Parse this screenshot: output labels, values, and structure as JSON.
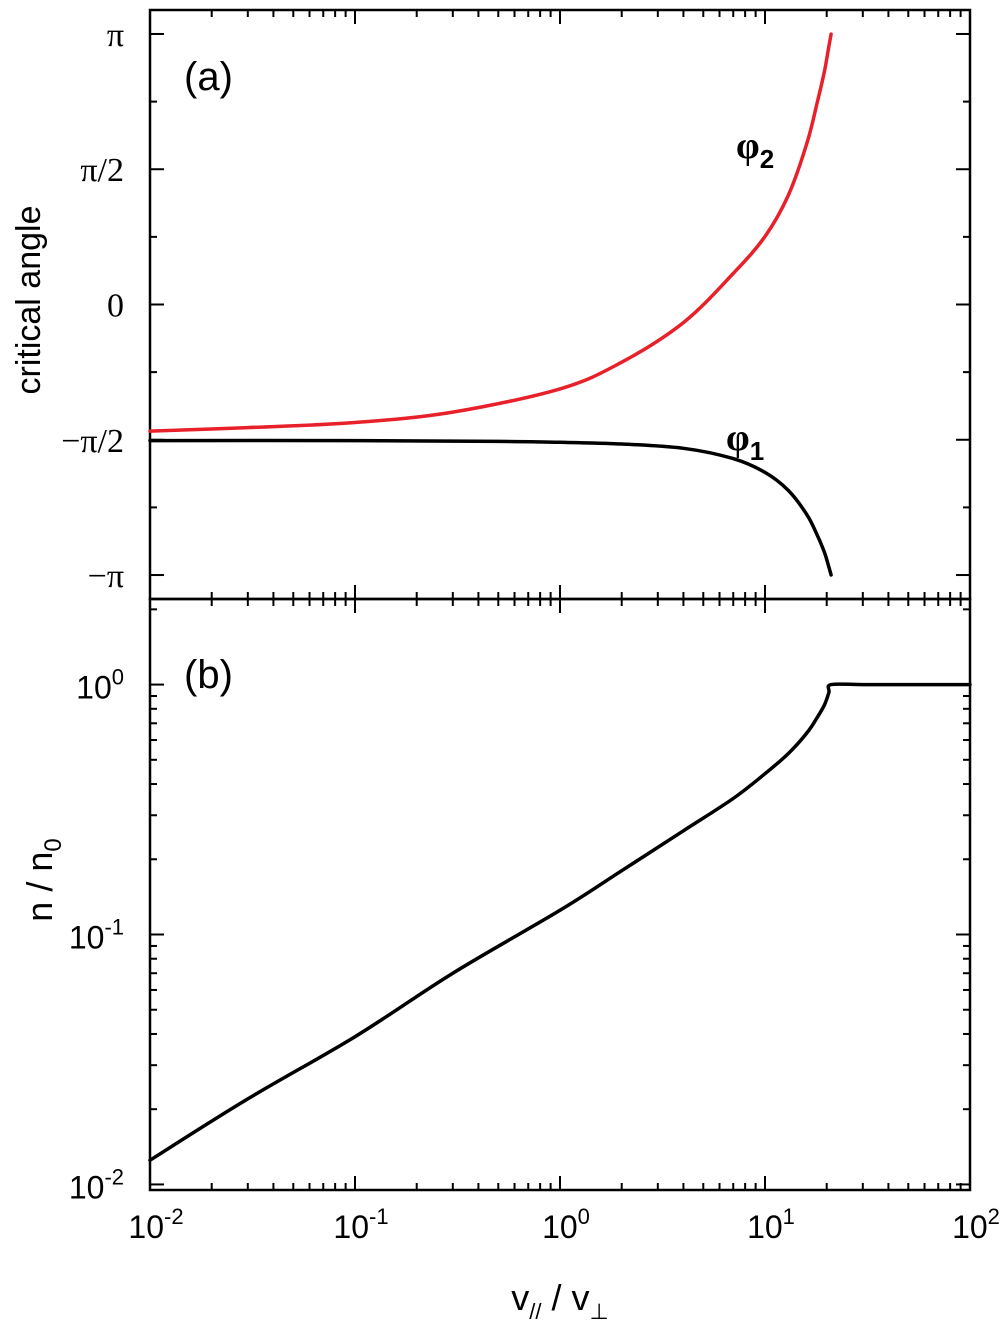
{
  "chart_data": [
    {
      "panel": "(a)",
      "type": "line",
      "ylabel": "critical angle",
      "xscale": "log",
      "xlim": [
        0.01,
        100
      ],
      "ylim": [
        -3.42,
        3.42
      ],
      "yticks": [
        {
          "value": 3.14159,
          "label": "π"
        },
        {
          "value": 1.5708,
          "label": "π/2"
        },
        {
          "value": 0,
          "label": "0"
        },
        {
          "value": -1.5708,
          "label": "−π/2"
        },
        {
          "value": -3.14159,
          "label": "−π"
        }
      ],
      "grid": false,
      "series": [
        {
          "name": "φ2",
          "color": "#e8202a",
          "x": [
            0.01,
            0.03,
            0.1,
            0.3,
            1,
            2,
            4,
            7,
            10,
            13,
            16,
            18,
            19.5,
            20.5,
            21
          ],
          "y": [
            -1.47,
            -1.43,
            -1.37,
            -1.25,
            -0.98,
            -0.67,
            -0.21,
            0.36,
            0.79,
            1.27,
            1.87,
            2.35,
            2.71,
            3.0,
            3.14
          ]
        },
        {
          "name": "φ1",
          "color": "#000000",
          "x": [
            0.01,
            0.1,
            0.5,
            1,
            2,
            4,
            7,
            10,
            13,
            16,
            18,
            19.5,
            20.5,
            21
          ],
          "y": [
            -1.58,
            -1.58,
            -1.59,
            -1.6,
            -1.62,
            -1.67,
            -1.79,
            -1.95,
            -2.16,
            -2.44,
            -2.68,
            -2.88,
            -3.05,
            -3.14
          ]
        }
      ],
      "series_labels": [
        {
          "base": "φ",
          "sub": "2"
        },
        {
          "base": "φ",
          "sub": "1"
        }
      ]
    },
    {
      "panel": "(b)",
      "type": "line",
      "ylabel": "n / n0",
      "ylabel_parts": {
        "base": "n / n",
        "sub": "0"
      },
      "xlabel": "v// / v⊥",
      "xlabel_parts": {
        "a": "v",
        "a_sub": "//",
        "mid": " / v",
        "b_sub": "⊥"
      },
      "xscale": "log",
      "yscale": "log",
      "xlim": [
        0.01,
        100
      ],
      "ylim": [
        0.0095,
        2.2
      ],
      "xticks": [
        {
          "value": 0.01,
          "base": "10",
          "exp": "-2"
        },
        {
          "value": 0.1,
          "base": "10",
          "exp": "-1"
        },
        {
          "value": 1,
          "base": "10",
          "exp": "0"
        },
        {
          "value": 10,
          "base": "10",
          "exp": "1"
        },
        {
          "value": 100,
          "base": "10",
          "exp": "2"
        }
      ],
      "yticks": [
        {
          "value": 1,
          "base": "10",
          "exp": "0"
        },
        {
          "value": 0.1,
          "base": "10",
          "exp": "-1"
        },
        {
          "value": 0.01,
          "base": "10",
          "exp": "-2"
        }
      ],
      "grid": false,
      "series": [
        {
          "color": "#000000",
          "x": [
            0.01,
            0.03,
            0.1,
            0.3,
            1,
            2,
            4,
            7,
            10,
            13,
            16,
            18,
            19.5,
            20.5,
            21,
            30,
            50,
            100
          ],
          "y": [
            0.0125,
            0.022,
            0.039,
            0.07,
            0.125,
            0.18,
            0.26,
            0.35,
            0.44,
            0.53,
            0.64,
            0.74,
            0.83,
            0.93,
            1.0,
            1.0,
            1.0,
            1.0
          ]
        }
      ]
    }
  ]
}
